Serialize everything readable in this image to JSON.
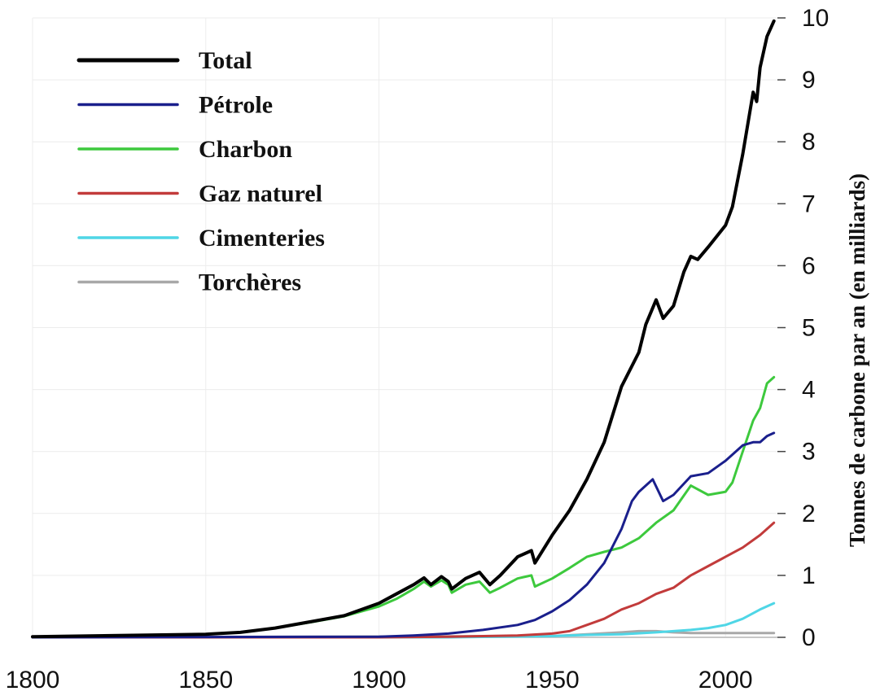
{
  "chart_data": {
    "type": "line",
    "title": "",
    "xlabel": "",
    "ylabel": "Tonnes de carbone par an (en milliards)",
    "xlim": [
      1800,
      2015
    ],
    "ylim": [
      0,
      10
    ],
    "x_ticks": [
      "1800",
      "1850",
      "1900",
      "1950",
      "2000"
    ],
    "y_ticks": [
      "0",
      "1",
      "2",
      "3",
      "4",
      "5",
      "6",
      "7",
      "8",
      "9",
      "10"
    ],
    "grid": true,
    "legend_position": "top-left",
    "series": [
      {
        "name": "Total",
        "color": "#000000",
        "x": [
          1800,
          1850,
          1860,
          1870,
          1880,
          1890,
          1900,
          1905,
          1910,
          1913,
          1915,
          1918,
          1920,
          1921,
          1925,
          1929,
          1932,
          1935,
          1940,
          1944,
          1945,
          1950,
          1955,
          1960,
          1965,
          1970,
          1975,
          1977,
          1980,
          1982,
          1985,
          1988,
          1990,
          1992,
          1995,
          2000,
          2002,
          2005,
          2008,
          2009,
          2010,
          2012,
          2014
        ],
        "y": [
          0.01,
          0.05,
          0.08,
          0.15,
          0.25,
          0.35,
          0.55,
          0.7,
          0.85,
          0.96,
          0.85,
          0.98,
          0.9,
          0.78,
          0.95,
          1.05,
          0.85,
          1.0,
          1.3,
          1.4,
          1.2,
          1.65,
          2.05,
          2.55,
          3.15,
          4.05,
          4.6,
          5.05,
          5.45,
          5.15,
          5.35,
          5.9,
          6.15,
          6.1,
          6.3,
          6.65,
          6.95,
          7.8,
          8.8,
          8.65,
          9.2,
          9.7,
          9.95
        ]
      },
      {
        "name": "Pétrole",
        "color": "#1a1f8c",
        "x": [
          1800,
          1900,
          1910,
          1920,
          1930,
          1940,
          1945,
          1950,
          1955,
          1960,
          1965,
          1970,
          1973,
          1975,
          1979,
          1982,
          1985,
          1990,
          1995,
          2000,
          2005,
          2008,
          2010,
          2012,
          2014
        ],
        "y": [
          0,
          0.01,
          0.03,
          0.06,
          0.12,
          0.2,
          0.28,
          0.42,
          0.6,
          0.85,
          1.2,
          1.75,
          2.2,
          2.35,
          2.55,
          2.2,
          2.3,
          2.6,
          2.65,
          2.85,
          3.1,
          3.15,
          3.15,
          3.25,
          3.3
        ]
      },
      {
        "name": "Charbon",
        "color": "#3dc93d",
        "x": [
          1800,
          1850,
          1860,
          1870,
          1880,
          1890,
          1900,
          1905,
          1910,
          1913,
          1915,
          1918,
          1920,
          1921,
          1925,
          1929,
          1932,
          1935,
          1940,
          1944,
          1945,
          1950,
          1955,
          1960,
          1965,
          1970,
          1975,
          1980,
          1985,
          1990,
          1995,
          2000,
          2002,
          2005,
          2008,
          2010,
          2012,
          2014
        ],
        "y": [
          0.01,
          0.05,
          0.08,
          0.15,
          0.24,
          0.34,
          0.5,
          0.62,
          0.78,
          0.9,
          0.82,
          0.92,
          0.85,
          0.72,
          0.85,
          0.9,
          0.72,
          0.8,
          0.95,
          1.0,
          0.82,
          0.95,
          1.12,
          1.3,
          1.38,
          1.45,
          1.6,
          1.85,
          2.05,
          2.45,
          2.3,
          2.35,
          2.5,
          3.0,
          3.5,
          3.7,
          4.1,
          4.2
        ]
      },
      {
        "name": "Gaz naturel",
        "color": "#c23b3b",
        "x": [
          1800,
          1900,
          1920,
          1940,
          1950,
          1955,
          1960,
          1965,
          1970,
          1975,
          1980,
          1985,
          1990,
          1995,
          2000,
          2005,
          2010,
          2014
        ],
        "y": [
          0,
          0,
          0.01,
          0.03,
          0.06,
          0.1,
          0.2,
          0.3,
          0.45,
          0.55,
          0.7,
          0.8,
          1.0,
          1.15,
          1.3,
          1.45,
          1.65,
          1.85
        ]
      },
      {
        "name": "Cimenteries",
        "color": "#4fd6e6",
        "x": [
          1800,
          1920,
          1950,
          1960,
          1970,
          1980,
          1985,
          1990,
          1995,
          2000,
          2005,
          2010,
          2014
        ],
        "y": [
          0,
          0,
          0.02,
          0.04,
          0.05,
          0.08,
          0.1,
          0.12,
          0.15,
          0.2,
          0.3,
          0.45,
          0.55
        ]
      },
      {
        "name": "Torchères",
        "color": "#a8a8a8",
        "x": [
          1800,
          1950,
          1960,
          1970,
          1975,
          1980,
          1985,
          1990,
          2000,
          2010,
          2014
        ],
        "y": [
          0,
          0.02,
          0.05,
          0.08,
          0.1,
          0.1,
          0.08,
          0.07,
          0.07,
          0.07,
          0.07
        ]
      }
    ]
  }
}
